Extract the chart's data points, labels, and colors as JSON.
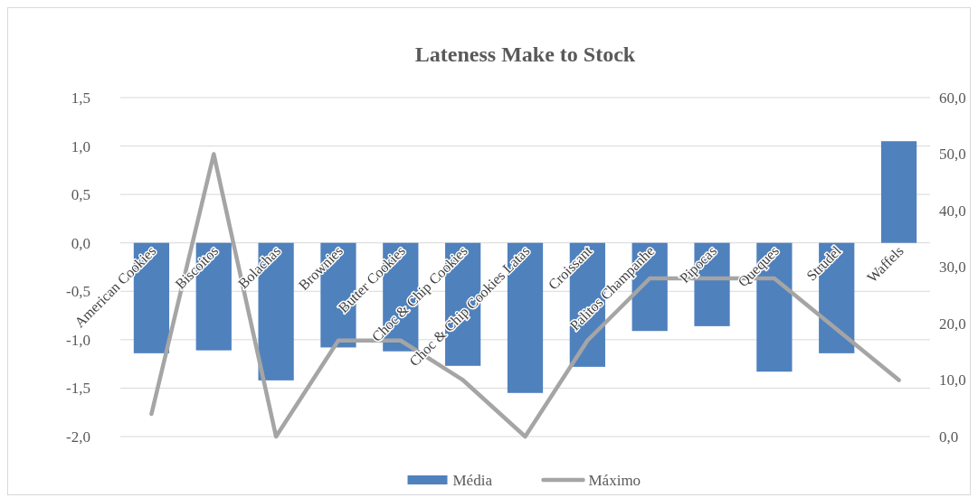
{
  "chart_data": {
    "type": "bar",
    "title": "Lateness Make to Stock",
    "categories": [
      "American Cookies",
      "Biscoitos",
      "Bolachas",
      "Brownies",
      "Butter Cookies",
      "Choc & Chip Cookies",
      "Choc & Chip Cookies Latas",
      "Croissant",
      "Palitos Champanhe",
      "Pipocas",
      "Queques",
      "Strudel",
      "Waffels"
    ],
    "series": [
      {
        "name": "Média",
        "color": "#4f81bd",
        "values": [
          -1.14,
          -1.11,
          -1.42,
          -1.08,
          -1.12,
          -1.27,
          -1.55,
          -1.28,
          -0.91,
          -0.86,
          -1.33,
          -1.14,
          1.05
        ]
      },
      {
        "name": "Máximo",
        "type": "line",
        "axis": "y2",
        "color": "#a5a5a5",
        "values": [
          4,
          50,
          0,
          17,
          17,
          10,
          0,
          17,
          28,
          28,
          28,
          19,
          10
        ]
      }
    ],
    "ylim": [
      -2,
      1.5
    ],
    "yticks": [
      {
        "value": -2,
        "label": "-2,0"
      },
      {
        "value": -1.5,
        "label": "-1,5"
      },
      {
        "value": -1,
        "label": "-1,0"
      },
      {
        "value": -0.5,
        "label": "-0,5"
      },
      {
        "value": 0,
        "label": "0,0"
      },
      {
        "value": 0.5,
        "label": "0,5"
      },
      {
        "value": 1,
        "label": "1,0"
      },
      {
        "value": 1.5,
        "label": "1,5"
      }
    ],
    "y2lim": [
      0,
      60
    ],
    "y2ticks": [
      {
        "value": 0,
        "label": "0,0"
      },
      {
        "value": 10,
        "label": "10,0"
      },
      {
        "value": 20,
        "label": "20,0"
      },
      {
        "value": 30,
        "label": "30,0"
      },
      {
        "value": 40,
        "label": "40,0"
      },
      {
        "value": 50,
        "label": "50,0"
      },
      {
        "value": 60,
        "label": "60,0"
      }
    ],
    "grid": "y",
    "legend": "bottom",
    "marker": "none"
  }
}
